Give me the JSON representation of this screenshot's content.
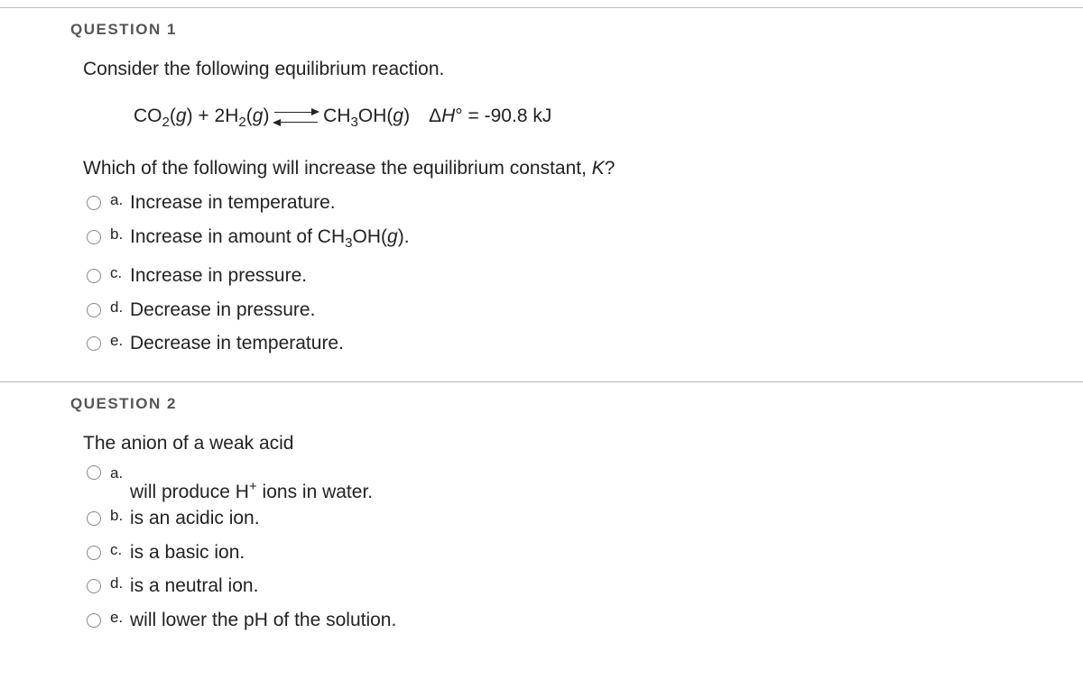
{
  "colors": {
    "heading": "#555555",
    "text": "#222222",
    "rule": "#bcbcbc",
    "radio_border": "#888888",
    "background": "#ffffff"
  },
  "typography": {
    "heading_fontsize": 17,
    "heading_letterspacing": 1.5,
    "body_fontsize": 21,
    "option_letter_fontsize": 17
  },
  "q1": {
    "heading": "QUESTION 1",
    "stem": "Consider the following equilibrium reaction.",
    "equation": {
      "lhs_html": "CO<sub>2</sub>(<i>g</i>) + 2H<sub>2</sub>(<i>g</i>)",
      "rhs_html": "CH<sub>3</sub>OH(<i>g</i>) Δ<i>H</i>° = -90.8 kJ",
      "arrow_type": "equilibrium"
    },
    "subq_html": "Which of the following will increase the equilibrium constant, <i>K</i>?",
    "options": [
      {
        "letter": "a.",
        "text_html": "Increase in temperature."
      },
      {
        "letter": "b.",
        "text_html": "Increase in amount of CH<sub>3</sub>OH(<i>g</i>)."
      },
      {
        "letter": "c.",
        "text_html": "Increase in pressure."
      },
      {
        "letter": "d.",
        "text_html": "Decrease in pressure."
      },
      {
        "letter": "e.",
        "text_html": "Decrease in temperature."
      }
    ]
  },
  "q2": {
    "heading": "QUESTION 2",
    "stem": "The anion of a weak acid",
    "options": [
      {
        "letter": "a.",
        "text_html": "will produce H<sup>+</sup> ions in water."
      },
      {
        "letter": "b.",
        "text_html": "is an acidic ion."
      },
      {
        "letter": "c.",
        "text_html": "is a basic ion."
      },
      {
        "letter": "d.",
        "text_html": "is a neutral ion."
      },
      {
        "letter": "e.",
        "text_html": "will lower the pH of the solution."
      }
    ]
  }
}
